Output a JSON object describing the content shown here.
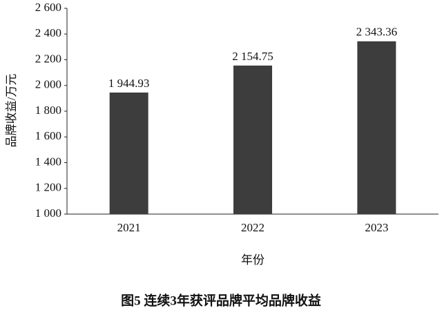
{
  "chart_data": {
    "type": "bar",
    "title": "图5  连续3年获评品牌平均品牌收益",
    "x_label": "年份",
    "y_label": "品牌收益/万元",
    "categories": [
      "2021",
      "2022",
      "2023"
    ],
    "values": [
      1944.93,
      2154.75,
      2343.36
    ],
    "value_labels": [
      "1 944.93",
      "2 154.75",
      "2 343.36"
    ],
    "color": "#3d3d3d",
    "ylim": [
      1000,
      2600
    ],
    "yticks": [
      {
        "value": 1000,
        "label": "1 000"
      },
      {
        "value": 1200,
        "label": "1 200"
      },
      {
        "value": 1400,
        "label": "1 400"
      },
      {
        "value": 1600,
        "label": "1 600"
      },
      {
        "value": 1800,
        "label": "1 800"
      },
      {
        "value": 2000,
        "label": "2 000"
      },
      {
        "value": 2200,
        "label": "2 200"
      },
      {
        "value": 2400,
        "label": "2 400"
      },
      {
        "value": 2600,
        "label": "2 600"
      }
    ],
    "grid": false
  }
}
